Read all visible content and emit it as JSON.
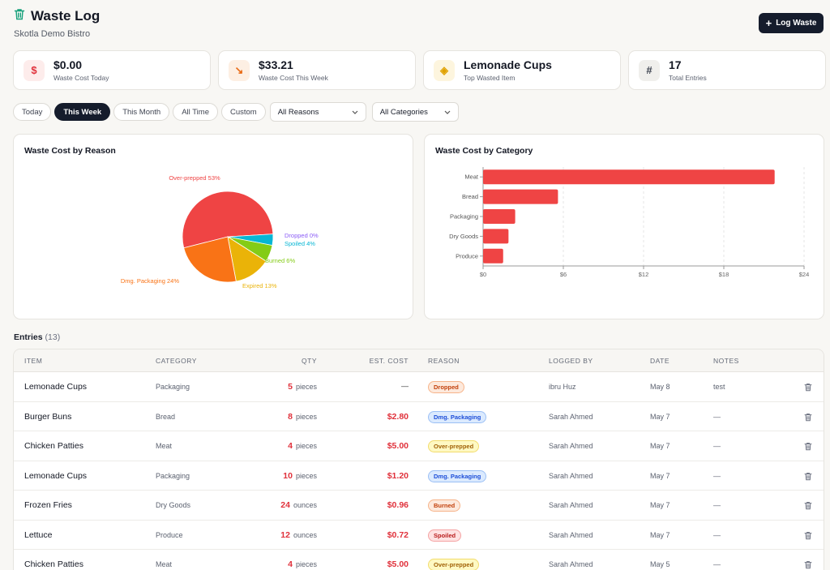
{
  "app": {
    "title": "Waste Log",
    "subtitle": "Skotla Demo Bistro",
    "log_button": "Log Waste"
  },
  "stats": [
    {
      "value": "$0.00",
      "label": "Waste Cost Today",
      "icon": "dollar-icon",
      "icon_char": "$",
      "icon_color": "#e0313b",
      "icon_bg": "#fdeceb"
    },
    {
      "value": "$33.21",
      "label": "Waste Cost This Week",
      "icon": "trending-down-icon",
      "icon_char": "↘",
      "icon_color": "#e96a14",
      "icon_bg": "#fdefe3"
    },
    {
      "value": "Lemonade Cups",
      "label": "Top Wasted Item",
      "icon": "box-icon",
      "icon_char": "◈",
      "icon_color": "#e0a100",
      "icon_bg": "#fdf5de"
    },
    {
      "value": "17",
      "label": "Total Entries",
      "icon": "hash-icon",
      "icon_char": "#",
      "icon_color": "#3d4350",
      "icon_bg": "#f0efec"
    }
  ],
  "filters": {
    "periods": [
      "Today",
      "This Week",
      "This Month",
      "All Time",
      "Custom"
    ],
    "active_period": "This Week",
    "reason_select": "All Reasons",
    "category_select": "All Categories"
  },
  "pie_panel": {
    "title": "Waste Cost by Reason"
  },
  "bar_panel": {
    "title": "Waste Cost by Category"
  },
  "chart_data": [
    {
      "type": "pie",
      "title": "Waste Cost by Reason",
      "categories": [
        "Over-prepped",
        "Dropped",
        "Spoiled",
        "Burned",
        "Expired",
        "Dmg. Packaging"
      ],
      "values": [
        53,
        0,
        4,
        6,
        13,
        24
      ],
      "labels": [
        "Over-prepped 53%",
        "Dropped 0%",
        "Spoiled 4%",
        "Burned 6%",
        "Expired 13%",
        "Dmg. Packaging 24%"
      ],
      "colors": [
        "#ef4444",
        "#8b5cf6",
        "#06b6d4",
        "#84cc16",
        "#eab308",
        "#f97316"
      ]
    },
    {
      "type": "bar",
      "orientation": "horizontal",
      "title": "Waste Cost by Category",
      "categories": [
        "Meat",
        "Bread",
        "Packaging",
        "Dry Goods",
        "Produce"
      ],
      "values": [
        21.8,
        5.6,
        2.4,
        1.9,
        1.5
      ],
      "xticks": [
        "$0",
        "$6",
        "$12",
        "$18",
        "$24"
      ],
      "xlim": [
        0,
        24
      ],
      "color": "#ef4444",
      "grid": true
    }
  ],
  "entries": {
    "heading": "Entries",
    "count": "(13)",
    "columns": [
      "ITEM",
      "CATEGORY",
      "QTY",
      "EST. COST",
      "REASON",
      "LOGGED BY",
      "DATE",
      "NOTES"
    ],
    "rows": [
      {
        "item": "Lemonade Cups",
        "category": "Packaging",
        "qty": "5",
        "unit": "pieces",
        "cost": "—",
        "reason": "Dropped",
        "logged_by": "ibru Huz",
        "date": "May 8",
        "notes": "test"
      },
      {
        "item": "Burger Buns",
        "category": "Bread",
        "qty": "8",
        "unit": "pieces",
        "cost": "$2.80",
        "reason": "Dmg. Packaging",
        "logged_by": "Sarah Ahmed",
        "date": "May 7",
        "notes": "—"
      },
      {
        "item": "Chicken Patties",
        "category": "Meat",
        "qty": "4",
        "unit": "pieces",
        "cost": "$5.00",
        "reason": "Over-prepped",
        "logged_by": "Sarah Ahmed",
        "date": "May 7",
        "notes": "—"
      },
      {
        "item": "Lemonade Cups",
        "category": "Packaging",
        "qty": "10",
        "unit": "pieces",
        "cost": "$1.20",
        "reason": "Dmg. Packaging",
        "logged_by": "Sarah Ahmed",
        "date": "May 7",
        "notes": "—"
      },
      {
        "item": "Frozen Fries",
        "category": "Dry Goods",
        "qty": "24",
        "unit": "ounces",
        "cost": "$0.96",
        "reason": "Burned",
        "logged_by": "Sarah Ahmed",
        "date": "May 7",
        "notes": "—"
      },
      {
        "item": "Lettuce",
        "category": "Produce",
        "qty": "12",
        "unit": "ounces",
        "cost": "$0.72",
        "reason": "Spoiled",
        "logged_by": "Sarah Ahmed",
        "date": "May 7",
        "notes": "—"
      },
      {
        "item": "Chicken Patties",
        "category": "Meat",
        "qty": "4",
        "unit": "pieces",
        "cost": "$5.00",
        "reason": "Over-prepped",
        "logged_by": "Sarah Ahmed",
        "date": "May 5",
        "notes": "—"
      }
    ]
  },
  "reason_styles": {
    "Dropped": {
      "bg": "#fde9dc",
      "fg": "#c2410c",
      "border": "#f6b48a"
    },
    "Dmg. Packaging": {
      "bg": "#dbeafe",
      "fg": "#1d4ed8",
      "border": "#9cc0f5"
    },
    "Over-prepped": {
      "bg": "#fef9c3",
      "fg": "#a16207",
      "border": "#f2dc6d"
    },
    "Burned": {
      "bg": "#fde9dc",
      "fg": "#c2410c",
      "border": "#f6b48a"
    },
    "Spoiled": {
      "bg": "#fee2e2",
      "fg": "#b91c1c",
      "border": "#f5a3a3"
    }
  }
}
